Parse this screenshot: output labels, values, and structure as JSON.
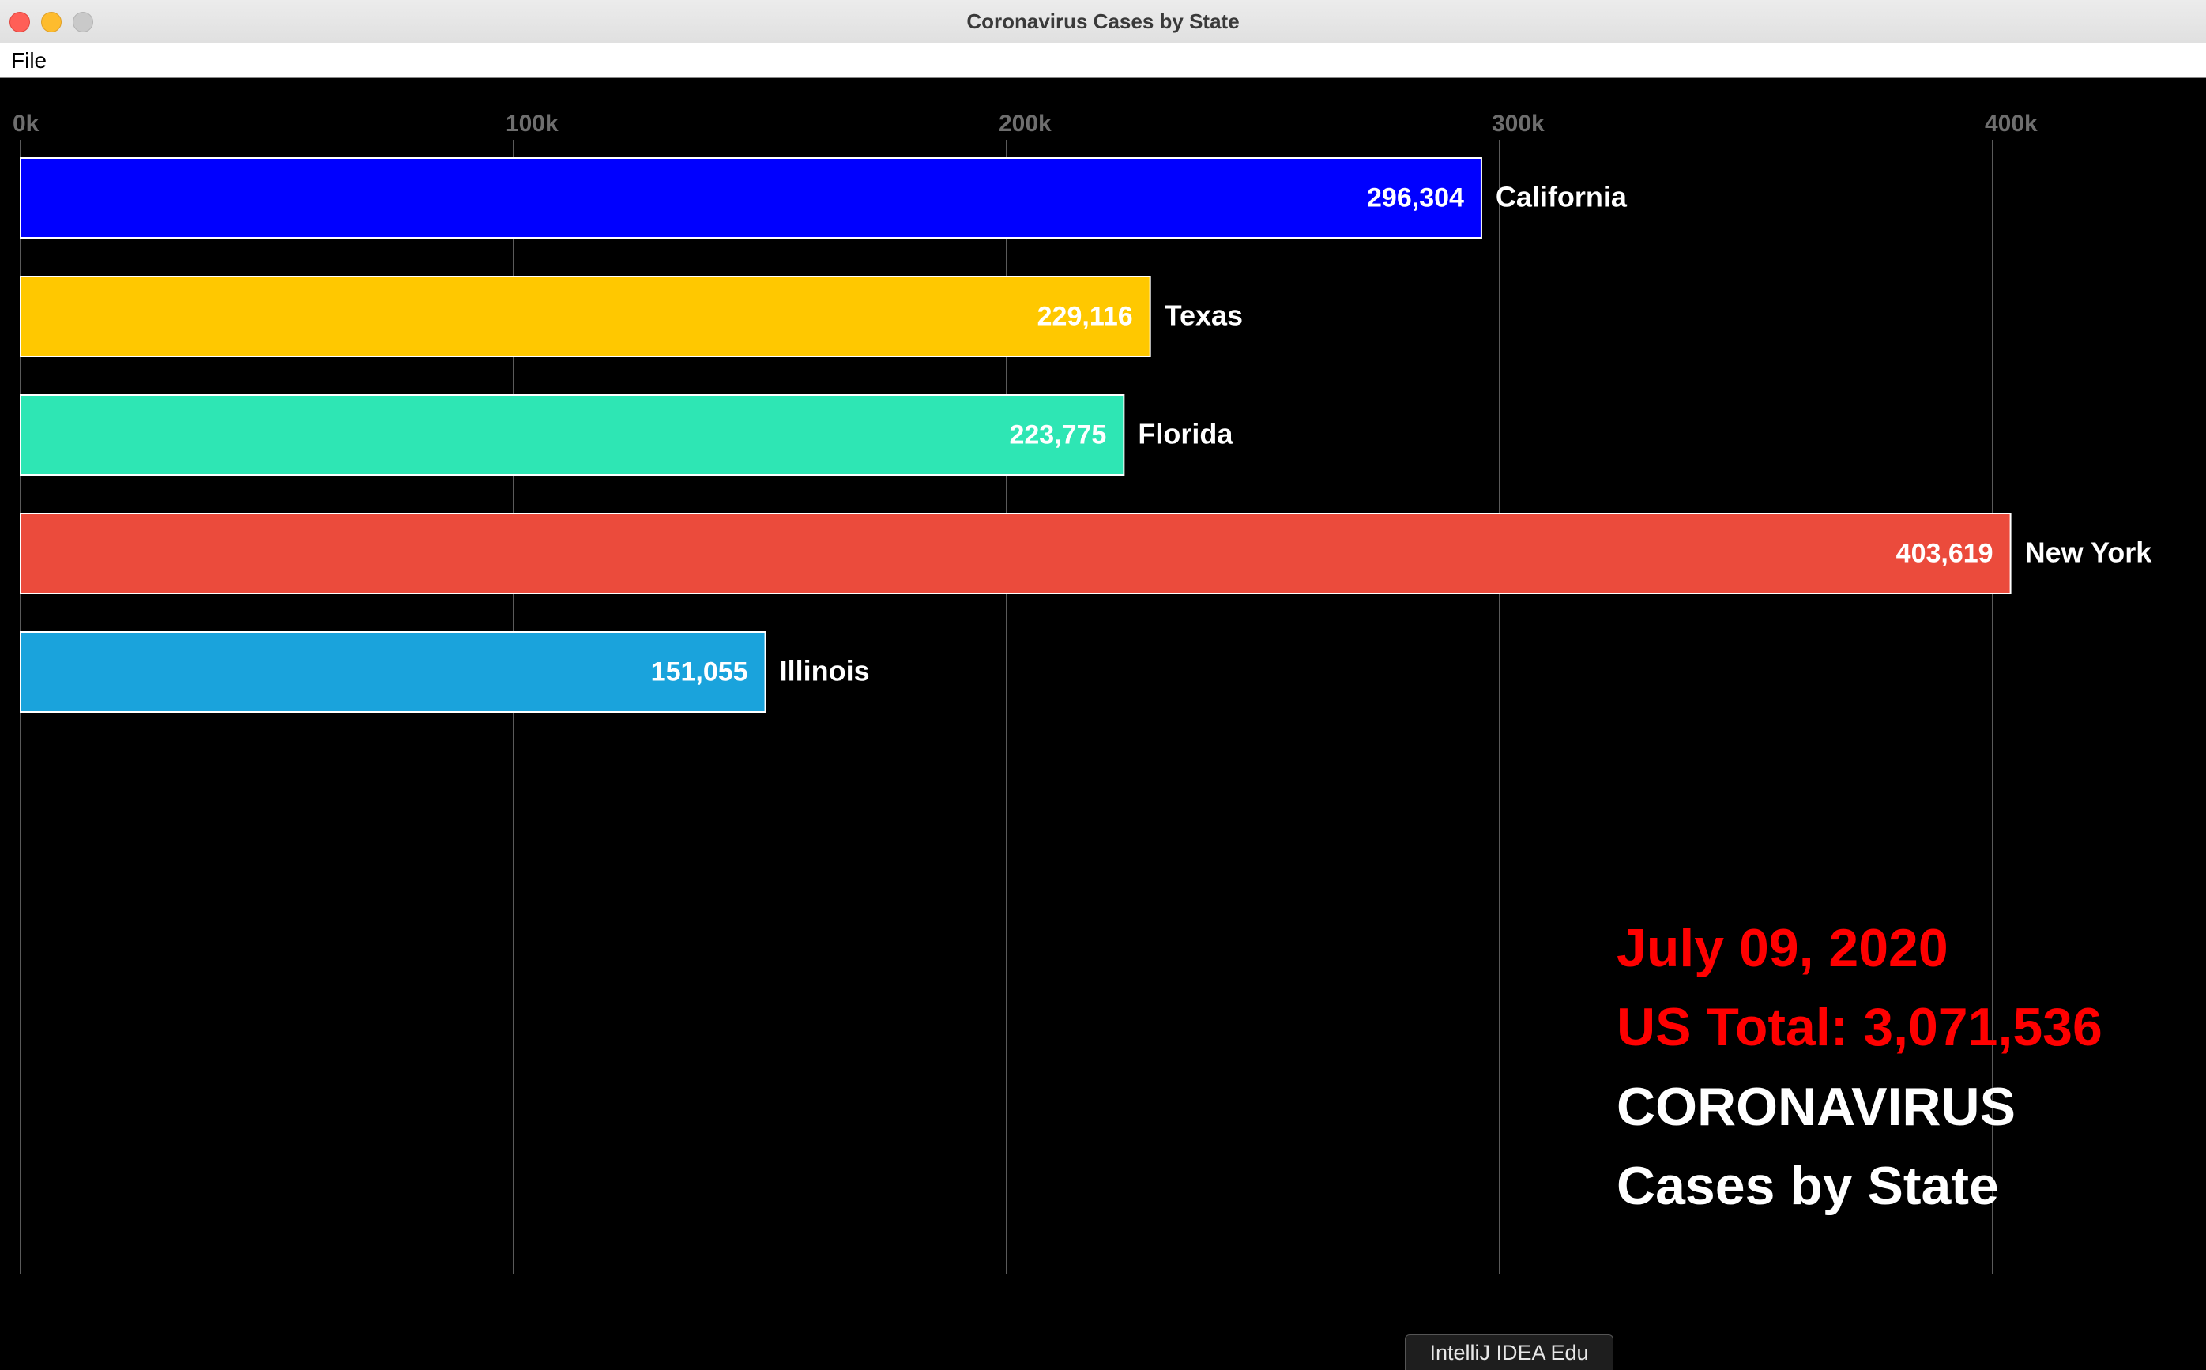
{
  "window": {
    "title": "Coronavirus Cases by State"
  },
  "menu": {
    "file_label": "File"
  },
  "overlay": {
    "date": "July 09, 2020",
    "total": "US Total: 3,071,536",
    "title_line1": "CORONAVIRUS",
    "title_line2": "Cases by State",
    "accent_color": "#ff0000"
  },
  "tooltip": {
    "label": "IntelliJ IDEA Edu"
  },
  "chart_data": {
    "type": "bar",
    "orientation": "horizontal",
    "categories": [
      "California",
      "Texas",
      "Florida",
      "New York",
      "Illinois"
    ],
    "values": [
      296304,
      229116,
      223775,
      403619,
      151055
    ],
    "value_labels": [
      "296,304",
      "229,116",
      "223,775",
      "403,619",
      "151,055"
    ],
    "colors": [
      "#0000ff",
      "#ffc800",
      "#2ee6b4",
      "#eb4b3c",
      "#1aa3dc"
    ],
    "xticks": [
      0,
      100000,
      200000,
      300000,
      400000
    ],
    "xtick_labels": [
      "0k",
      "100k",
      "200k",
      "300k",
      "400k"
    ],
    "xlim": [
      0,
      440000
    ],
    "grid": true,
    "background": "#000000"
  }
}
